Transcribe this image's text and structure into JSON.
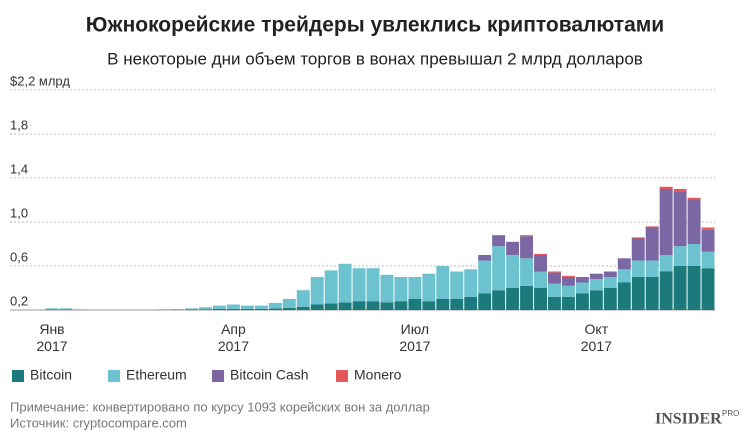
{
  "chart_data": {
    "type": "stacked-bar",
    "title": "Южнокорейские трейдеры увлеклись криптовалютами",
    "subtitle": "В некоторые дни объем торгов в вонах превышал 2 млрд долларов",
    "note": "Примечание: конвертировано по курсу 1093 корейских вон за доллар",
    "source": "Источник: cryptocompare.com",
    "logo": "INSIDER",
    "logo_sub": "PRO",
    "categories": [
      "Янв 2017",
      null,
      null,
      null,
      null,
      null,
      null,
      null,
      null,
      null,
      null,
      null,
      null,
      "Апр 2017",
      null,
      null,
      null,
      null,
      null,
      null,
      null,
      null,
      null,
      null,
      null,
      null,
      "Июл 2017",
      null,
      null,
      null,
      null,
      null,
      null,
      null,
      null,
      null,
      null,
      null,
      null,
      "Окт 2017",
      null,
      null,
      null,
      null,
      null,
      null,
      null,
      null
    ],
    "series": [
      {
        "name": "Bitcoin",
        "color": "#1d7a7c",
        "values": [
          0.005,
          0.005,
          0.003,
          0,
          0,
          0,
          0,
          0,
          0.003,
          0.005,
          0.005,
          0.005,
          0.01,
          0.01,
          0.01,
          0.01,
          0.015,
          0.02,
          0.03,
          0.05,
          0.06,
          0.07,
          0.08,
          0.08,
          0.07,
          0.08,
          0.1,
          0.08,
          0.1,
          0.1,
          0.12,
          0.15,
          0.18,
          0.2,
          0.22,
          0.2,
          0.12,
          0.12,
          0.15,
          0.18,
          0.2,
          0.25,
          0.3,
          0.3,
          0.35,
          0.4,
          0.4,
          0.38
        ]
      },
      {
        "name": "Ethereum",
        "color": "#6cc3cf",
        "values": [
          0.01,
          0.01,
          0,
          0,
          0,
          0,
          0,
          0,
          0,
          0,
          0.01,
          0.02,
          0.03,
          0.04,
          0.03,
          0.03,
          0.05,
          0.08,
          0.15,
          0.25,
          0.3,
          0.35,
          0.3,
          0.3,
          0.25,
          0.22,
          0.2,
          0.25,
          0.3,
          0.25,
          0.25,
          0.3,
          0.4,
          0.3,
          0.25,
          0.15,
          0.12,
          0.1,
          0.1,
          0.1,
          0.1,
          0.12,
          0.15,
          0.15,
          0.15,
          0.18,
          0.2,
          0.15
        ]
      },
      {
        "name": "Bitcoin Cash",
        "color": "#7a67a4",
        "values": [
          0,
          0,
          0,
          0,
          0,
          0,
          0,
          0,
          0,
          0,
          0,
          0,
          0,
          0,
          0,
          0,
          0,
          0,
          0,
          0,
          0,
          0,
          0,
          0,
          0,
          0,
          0,
          0,
          0,
          0,
          0,
          0.05,
          0.1,
          0.12,
          0.2,
          0.15,
          0.1,
          0.08,
          0.05,
          0.05,
          0.05,
          0.1,
          0.2,
          0.3,
          0.6,
          0.5,
          0.4,
          0.2
        ]
      },
      {
        "name": "Monero",
        "color": "#e5555c",
        "values": [
          0,
          0,
          0,
          0,
          0,
          0,
          0,
          0,
          0,
          0,
          0,
          0,
          0,
          0,
          0,
          0,
          0,
          0,
          0,
          0,
          0,
          0,
          0,
          0,
          0,
          0,
          0,
          0,
          0,
          0,
          0,
          0,
          0,
          0,
          0.01,
          0.01,
          0.01,
          0.01,
          0,
          0,
          0,
          0,
          0.01,
          0.01,
          0.02,
          0.02,
          0.02,
          0.02
        ]
      }
    ],
    "ylim": [
      0.2,
      2.2
    ],
    "yticks": [
      {
        "value": 0.2,
        "label": "0,2"
      },
      {
        "value": 0.6,
        "label": "0,6"
      },
      {
        "value": 1.0,
        "label": "1,0"
      },
      {
        "value": 1.4,
        "label": "1,4"
      },
      {
        "value": 1.8,
        "label": "1,8"
      },
      {
        "value": 2.2,
        "label": "$2,2 млрд"
      }
    ],
    "grid": true
  }
}
